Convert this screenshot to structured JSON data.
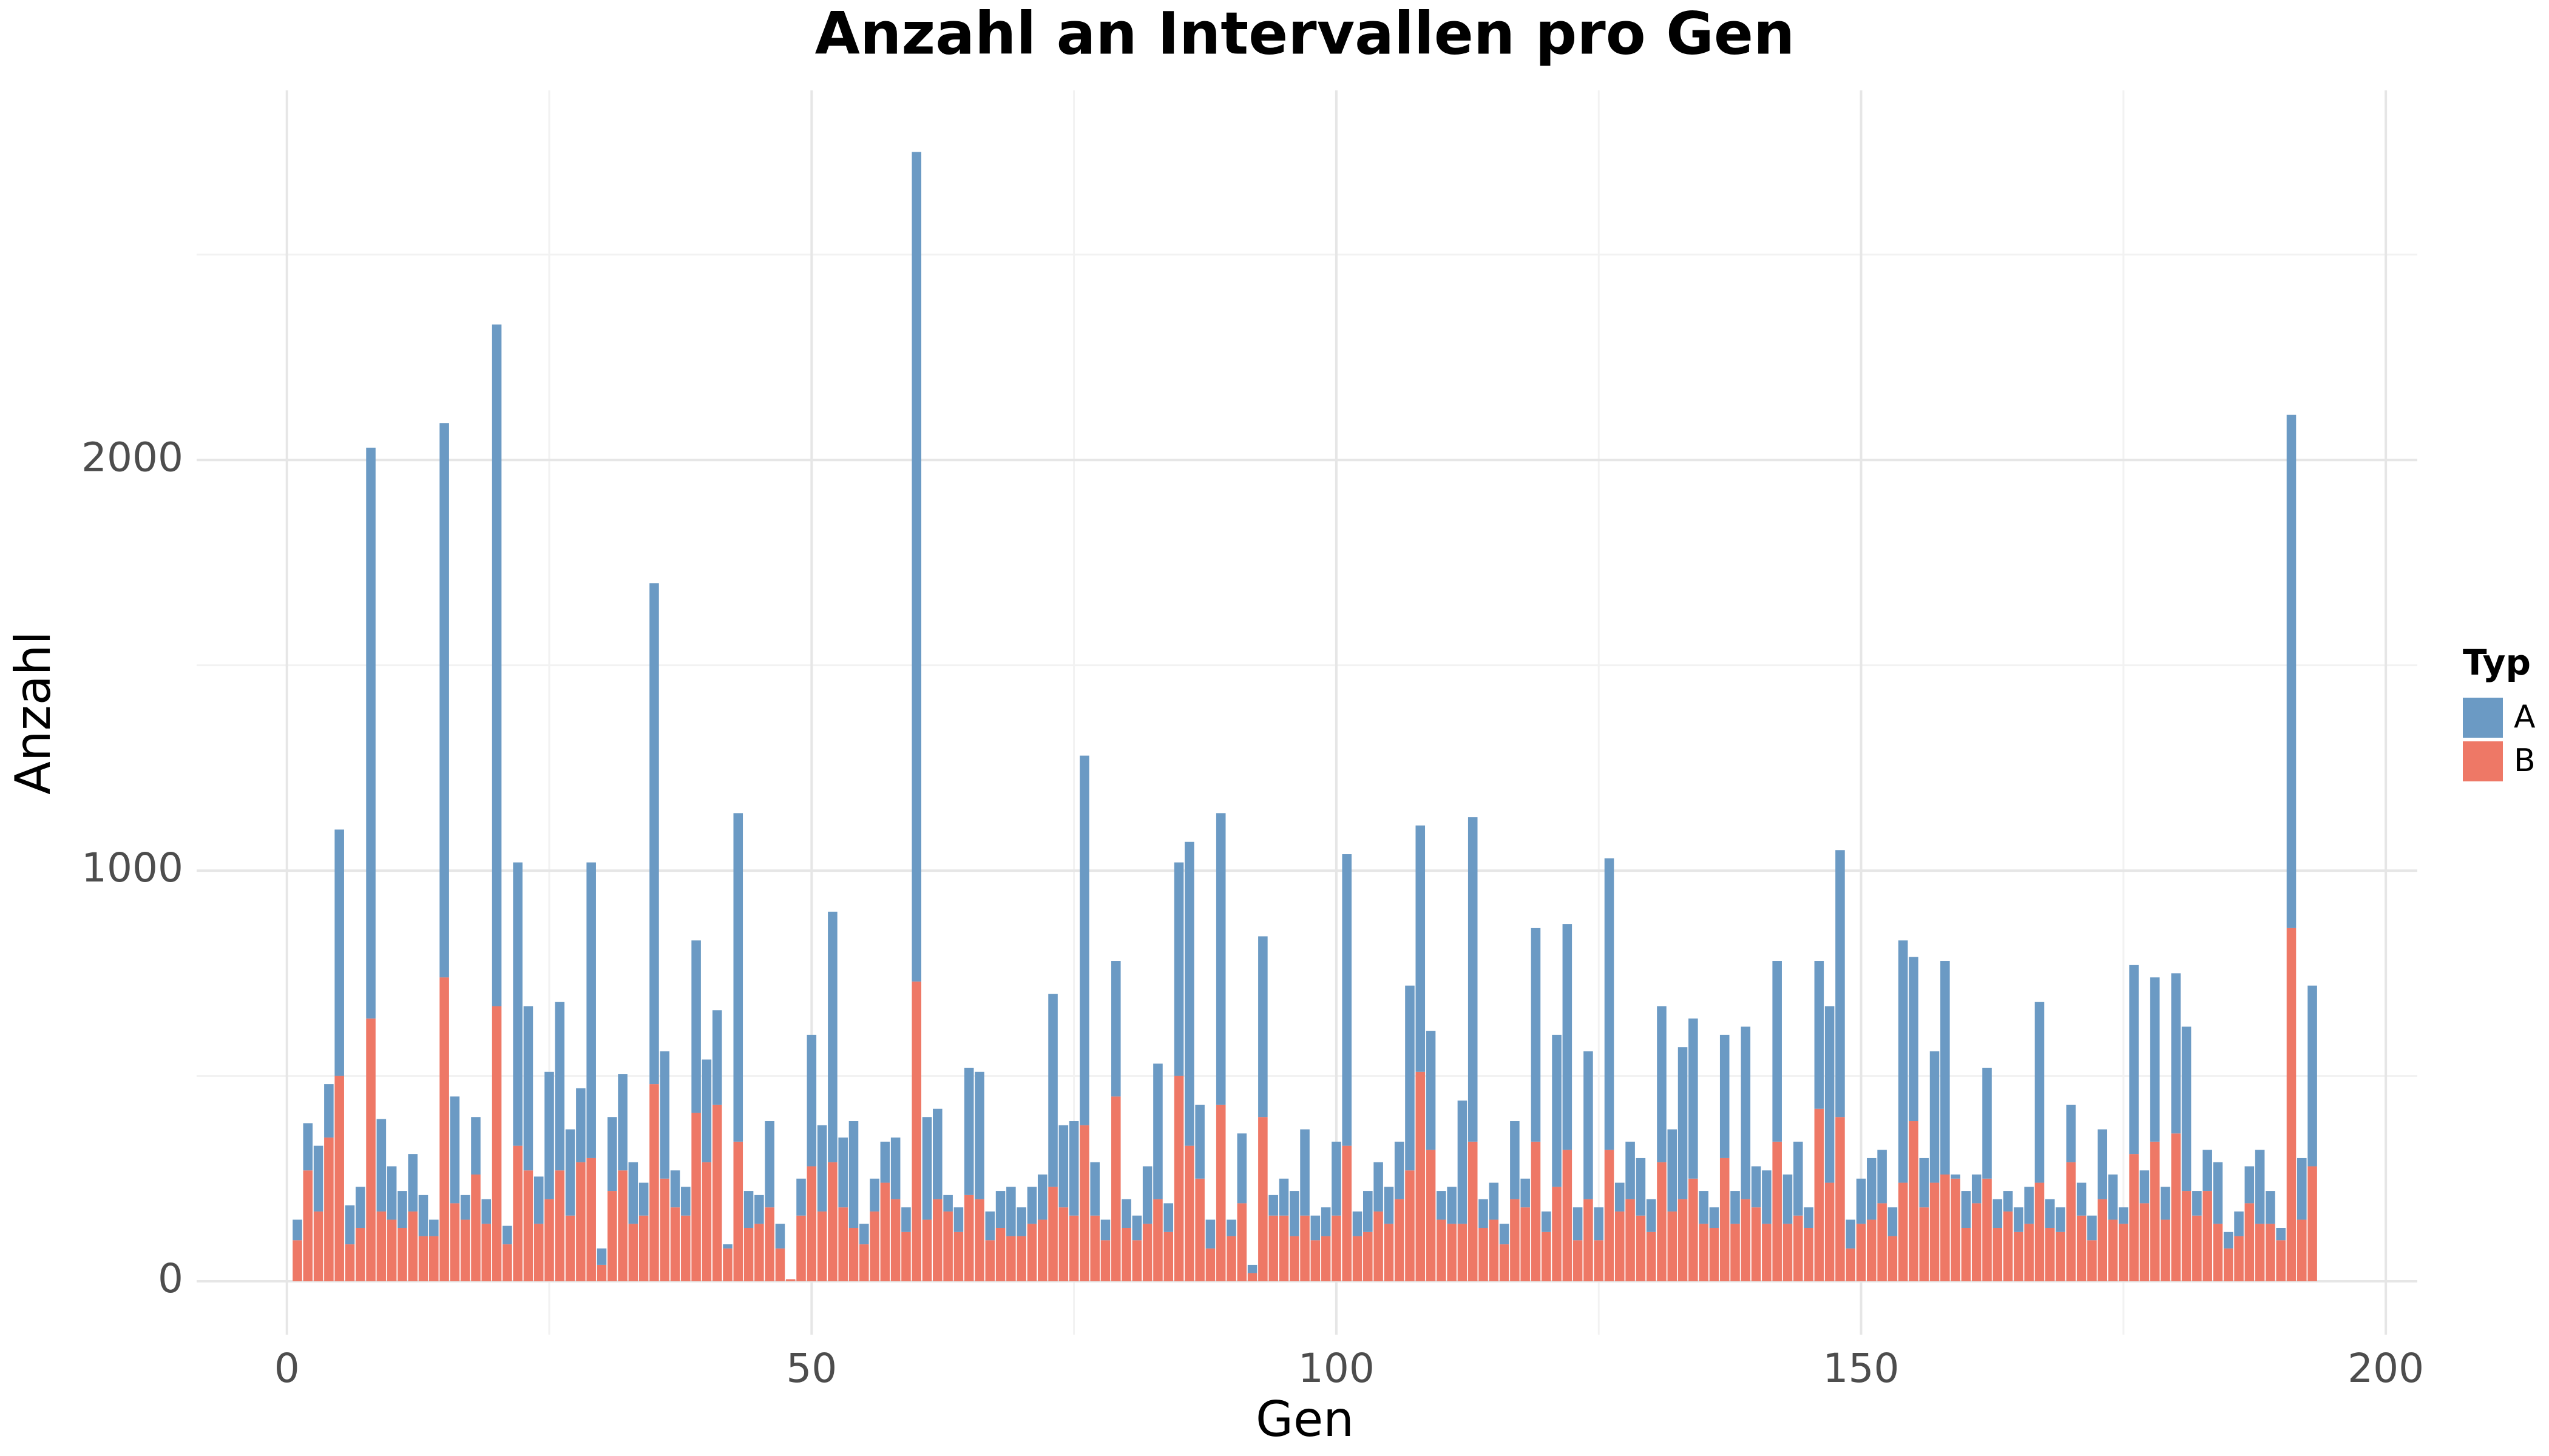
{
  "chart_data": {
    "type": "stacked_bar",
    "title": "Anzahl an Intervallen pro Gen",
    "x_label": "Gen",
    "y_label": "Anzahl",
    "legend_title": "Typ",
    "legend": "right",
    "grid": true,
    "xlim": [
      -8.6,
      203
    ],
    "ylim": [
      -130,
      2900
    ],
    "xticks": [
      0,
      50,
      100,
      150,
      200
    ],
    "yticks": [
      0,
      1000,
      2000
    ],
    "minor_xticks": [
      25,
      75,
      125,
      175
    ],
    "minor_yticks": [
      500,
      1500,
      2500
    ],
    "x": [
      1,
      2,
      3,
      4,
      5,
      6,
      7,
      8,
      9,
      10,
      11,
      12,
      13,
      14,
      15,
      16,
      17,
      18,
      19,
      20,
      21,
      22,
      23,
      24,
      25,
      26,
      27,
      28,
      29,
      30,
      31,
      32,
      33,
      34,
      35,
      36,
      37,
      38,
      39,
      40,
      41,
      42,
      43,
      44,
      45,
      46,
      47,
      48,
      49,
      50,
      51,
      52,
      53,
      54,
      55,
      56,
      57,
      58,
      59,
      60,
      61,
      62,
      63,
      64,
      65,
      66,
      67,
      68,
      69,
      70,
      71,
      72,
      73,
      74,
      75,
      76,
      77,
      78,
      79,
      80,
      81,
      82,
      83,
      84,
      85,
      86,
      87,
      88,
      89,
      90,
      91,
      92,
      93,
      94,
      95,
      96,
      97,
      98,
      99,
      100,
      101,
      102,
      103,
      104,
      105,
      106,
      107,
      108,
      109,
      110,
      111,
      112,
      113,
      114,
      115,
      116,
      117,
      118,
      119,
      120,
      121,
      122,
      123,
      124,
      125,
      126,
      127,
      128,
      129,
      130,
      131,
      132,
      133,
      134,
      135,
      136,
      137,
      138,
      139,
      140,
      141,
      142,
      143,
      144,
      145,
      146,
      147,
      148,
      149,
      150,
      151,
      152,
      153,
      154,
      155,
      156,
      157,
      158,
      159,
      160,
      161,
      162,
      163,
      164,
      165,
      166,
      167,
      168,
      169,
      170,
      171,
      172,
      173,
      174,
      175,
      176,
      177,
      178,
      179,
      180,
      181,
      182,
      183,
      184,
      185,
      186,
      187,
      188,
      189,
      190,
      191,
      192,
      193
    ],
    "series": [
      {
        "name": "A",
        "color": "#6b9ac4",
        "values": [
          50,
          115,
          160,
          130,
          600,
          95,
          100,
          1390,
          225,
          130,
          90,
          140,
          100,
          40,
          1350,
          260,
          60,
          140,
          60,
          1660,
          45,
          690,
          400,
          115,
          310,
          410,
          210,
          180,
          720,
          40,
          180,
          235,
          150,
          80,
          1220,
          310,
          90,
          70,
          420,
          250,
          230,
          10,
          800,
          90,
          70,
          210,
          60,
          0,
          90,
          320,
          210,
          610,
          170,
          260,
          50,
          80,
          100,
          150,
          60,
          2020,
          250,
          220,
          40,
          60,
          310,
          310,
          70,
          90,
          120,
          70,
          90,
          110,
          470,
          200,
          230,
          900,
          130,
          50,
          330,
          70,
          60,
          140,
          330,
          70,
          520,
          740,
          180,
          70,
          710,
          40,
          170,
          20,
          440,
          50,
          90,
          110,
          210,
          60,
          70,
          180,
          710,
          60,
          100,
          120,
          90,
          140,
          450,
          600,
          290,
          70,
          90,
          300,
          790,
          70,
          90,
          50,
          190,
          70,
          520,
          50,
          370,
          550,
          80,
          360,
          80,
          710,
          70,
          140,
          140,
          80,
          380,
          200,
          370,
          390,
          80,
          50,
          300,
          80,
          420,
          100,
          130,
          440,
          120,
          180,
          50,
          360,
          430,
          650,
          70,
          110,
          150,
          130,
          70,
          590,
          400,
          120,
          320,
          520,
          10,
          90,
          70,
          270,
          70,
          50,
          60,
          90,
          440,
          70,
          60,
          140,
          80,
          60,
          170,
          110,
          40,
          460,
          80,
          400,
          80,
          390,
          400,
          60,
          100,
          150,
          40,
          60,
          90,
          180,
          80,
          30,
          1250,
          150,
          440
        ]
      },
      {
        "name": "B",
        "color": "#ee7866",
        "values": [
          100,
          270,
          170,
          350,
          500,
          90,
          130,
          640,
          170,
          150,
          130,
          170,
          110,
          110,
          740,
          190,
          150,
          260,
          140,
          670,
          90,
          330,
          270,
          140,
          200,
          270,
          160,
          290,
          300,
          40,
          220,
          270,
          140,
          160,
          480,
          250,
          180,
          160,
          410,
          290,
          430,
          80,
          340,
          130,
          140,
          180,
          80,
          5,
          160,
          280,
          170,
          290,
          180,
          130,
          90,
          170,
          240,
          200,
          120,
          730,
          150,
          200,
          170,
          120,
          210,
          200,
          100,
          130,
          110,
          110,
          140,
          150,
          230,
          180,
          160,
          380,
          160,
          100,
          450,
          130,
          100,
          140,
          200,
          120,
          500,
          330,
          250,
          80,
          430,
          110,
          190,
          20,
          400,
          160,
          160,
          110,
          160,
          100,
          110,
          160,
          330,
          110,
          120,
          170,
          140,
          200,
          270,
          510,
          320,
          150,
          140,
          140,
          340,
          130,
          150,
          90,
          200,
          180,
          340,
          120,
          230,
          320,
          100,
          200,
          100,
          320,
          170,
          200,
          160,
          120,
          290,
          170,
          200,
          250,
          140,
          130,
          300,
          140,
          200,
          180,
          140,
          340,
          140,
          160,
          130,
          420,
          240,
          400,
          80,
          140,
          150,
          190,
          110,
          240,
          390,
          180,
          240,
          260,
          250,
          130,
          190,
          250,
          130,
          170,
          120,
          140,
          240,
          130,
          120,
          290,
          160,
          100,
          200,
          150,
          140,
          310,
          190,
          340,
          150,
          360,
          220,
          160,
          220,
          140,
          80,
          110,
          190,
          140,
          140,
          100,
          860,
          150,
          280
        ]
      }
    ]
  }
}
